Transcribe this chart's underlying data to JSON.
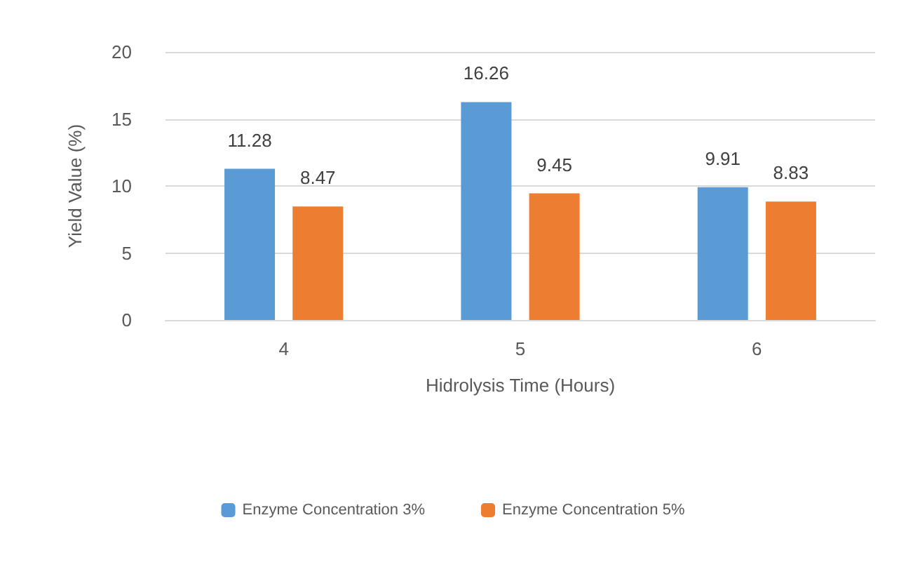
{
  "chart_data": {
    "type": "bar",
    "xlabel": "Hidrolysis Time (Hours)",
    "ylabel": "Yield Value (%)",
    "categories": [
      "4",
      "5",
      "6"
    ],
    "series": [
      {
        "name": "Enzyme Concentration 3%",
        "color": "#5b9bd5",
        "values": [
          11.28,
          16.26,
          9.91
        ]
      },
      {
        "name": "Enzyme Concentration 5%",
        "color": "#ed7d31",
        "values": [
          8.47,
          9.45,
          8.83
        ]
      }
    ],
    "ylim": [
      0,
      20
    ],
    "yticks": [
      0,
      5,
      10,
      15,
      20
    ],
    "grid": "y",
    "legend": "bottom",
    "data_labels": true
  }
}
